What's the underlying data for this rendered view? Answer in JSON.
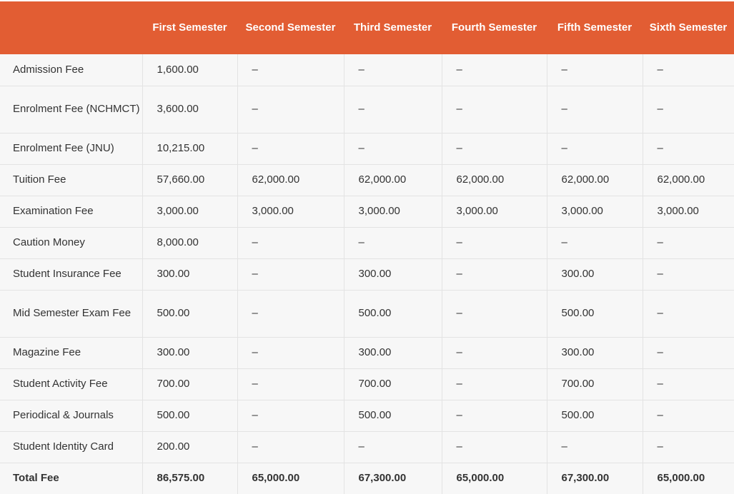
{
  "table": {
    "headers": [
      "",
      "First Semester",
      "Second Semester",
      "Third Semester",
      "Fourth Semester",
      "Fifth Semester",
      "Sixth Semester"
    ],
    "rows": [
      {
        "label": "Admission Fee",
        "values": [
          "1,600.00",
          "–",
          "–",
          "–",
          "–",
          "–"
        ]
      },
      {
        "label": "Enrolment Fee (NCHMCT)",
        "values": [
          "3,600.00",
          "–",
          "–",
          "–",
          "–",
          "–"
        ]
      },
      {
        "label": "Enrolment Fee (JNU)",
        "values": [
          "10,215.00",
          "–",
          "–",
          "–",
          "–",
          "–"
        ]
      },
      {
        "label": "Tuition Fee",
        "values": [
          "57,660.00",
          "62,000.00",
          "62,000.00",
          "62,000.00",
          "62,000.00",
          "62,000.00"
        ]
      },
      {
        "label": "Examination Fee",
        "values": [
          "3,000.00",
          "3,000.00",
          "3,000.00",
          "3,000.00",
          "3,000.00",
          "3,000.00"
        ]
      },
      {
        "label": "Caution Money",
        "values": [
          "8,000.00",
          "–",
          "–",
          "–",
          "–",
          "–"
        ]
      },
      {
        "label": "Student Insurance Fee",
        "values": [
          "300.00",
          "–",
          "300.00",
          "–",
          "300.00",
          "–"
        ]
      },
      {
        "label": "Mid Semester Exam Fee",
        "values": [
          "500.00",
          "–",
          "500.00",
          "–",
          "500.00",
          "–"
        ]
      },
      {
        "label": "Magazine Fee",
        "values": [
          "300.00",
          "–",
          "300.00",
          "–",
          "300.00",
          "–"
        ]
      },
      {
        "label": "Student Activity Fee",
        "values": [
          "700.00",
          "–",
          "700.00",
          "–",
          "700.00",
          "–"
        ]
      },
      {
        "label": "Periodical & Journals",
        "values": [
          "500.00",
          "–",
          "500.00",
          "–",
          "500.00",
          "–"
        ]
      },
      {
        "label": "Student Identity Card",
        "values": [
          "200.00",
          "–",
          "–",
          "–",
          "–",
          "–"
        ]
      },
      {
        "label": "Total Fee",
        "values": [
          "86,575.00",
          "65,000.00",
          "67,300.00",
          "65,000.00",
          "67,300.00",
          "65,000.00"
        ]
      }
    ]
  },
  "colors": {
    "header_bg": "#e25d33",
    "header_text": "#ffffff",
    "row_bg": "#f7f7f7",
    "grid_line": "#e3e3e3",
    "body_text": "#333333"
  }
}
